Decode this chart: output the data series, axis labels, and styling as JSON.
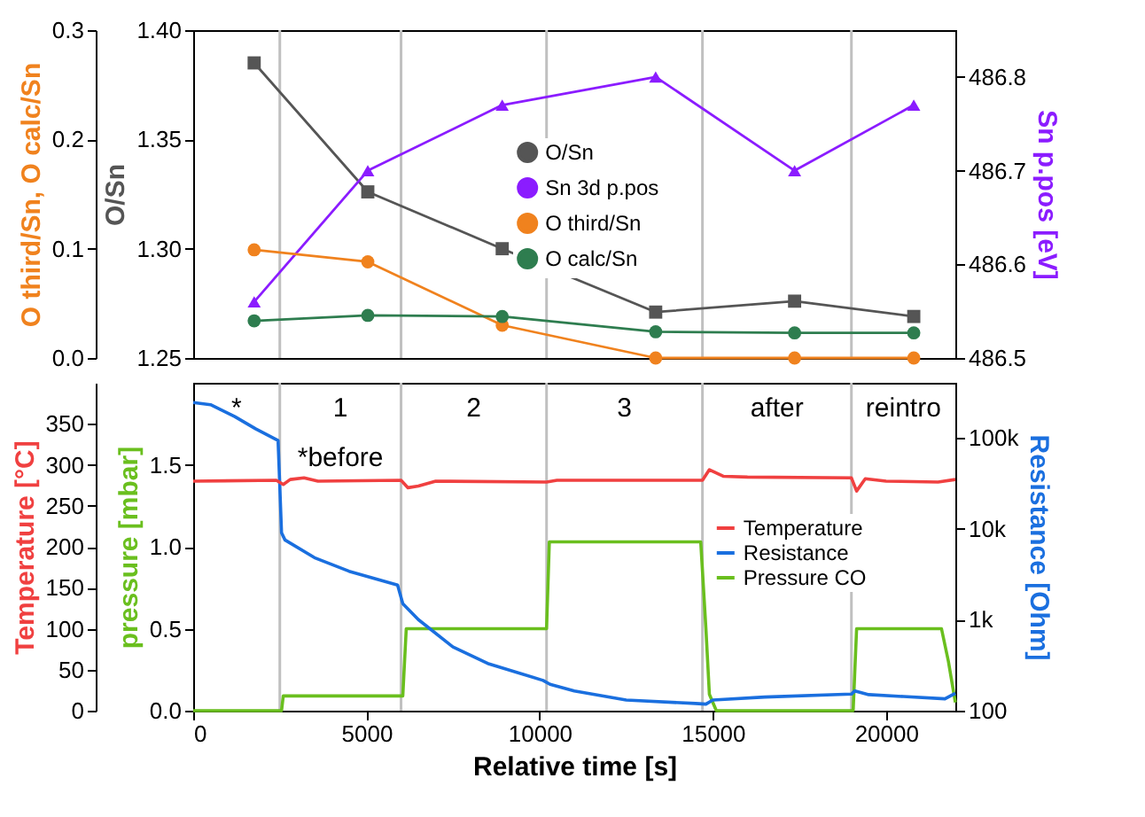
{
  "chart_data": [
    {
      "type": "line",
      "x": [
        1760,
        5040,
        8920,
        13350,
        17360,
        20800
      ],
      "xlim": [
        0,
        22000
      ],
      "tick_labels": "y",
      "legend": "center",
      "line_style": "solid",
      "ylabel": "O/Sn",
      "ylim": [
        1.25,
        1.4
      ],
      "yticks": [
        1.25,
        {
          "value": 1.3,
          "label": "1.30"
        },
        1.35,
        {
          "value": 1.4,
          "label": "1.40"
        }
      ],
      "y2label": "Sn p.pos [eV]",
      "y2lim": [
        486.5,
        486.85
      ],
      "y2ticks": [
        486.5,
        486.6,
        486.7,
        486.8
      ],
      "y3label": "O third/Sn, O calc/Sn",
      "y3lim": [
        0,
        0.3
      ],
      "y3ticks": [
        {
          "value": 0,
          "label": "0.0"
        },
        0.1,
        0.2,
        0.3
      ],
      "ref_lines": [
        {
          "axis": "x",
          "value": 2500,
          "color": "#c0c0c0"
        },
        {
          "axis": "x",
          "value": 6000,
          "color": "#c0c0c0"
        },
        {
          "axis": "x",
          "value": 10200,
          "color": "#c0c0c0"
        },
        {
          "axis": "x",
          "value": 14700,
          "color": "#c0c0c0"
        },
        {
          "axis": "x",
          "value": 19000,
          "color": "#c0c0c0"
        }
      ],
      "series": [
        {
          "name": "O/Sn",
          "color": "#555555",
          "marker": "square",
          "axis": "y",
          "values": [
            1.385,
            1.326,
            1.3,
            1.271,
            1.276,
            1.269
          ]
        },
        {
          "name": "Sn 3d p.pos",
          "color": "#8b1cff",
          "marker": "triangle",
          "axis": "y2",
          "values": [
            486.56,
            486.7,
            486.77,
            486.8,
            486.7,
            486.77
          ]
        },
        {
          "name": "O third/Sn",
          "color": "#f0821e",
          "marker": "circle",
          "axis": "y3",
          "values": [
            0.099,
            0.088,
            0.03,
            0,
            0,
            0
          ]
        },
        {
          "name": "O calc/Sn",
          "color": "#2e7d4f",
          "marker": "circle",
          "axis": "y3",
          "values": [
            0.034,
            0.039,
            0.038,
            0.024,
            0.023,
            0.023
          ]
        }
      ]
    },
    {
      "type": "line",
      "xlim": [
        0,
        22000
      ],
      "xticks": [
        0,
        5000,
        10000,
        15000,
        20000
      ],
      "xlabel": "Relative time [s]",
      "legend": "right",
      "line_style": "solid",
      "log": "y2",
      "ylabel": "pressure [mbar]",
      "ylim": [
        0,
        2.0
      ],
      "yticks": [
        {
          "value": 0,
          "label": "0.0"
        },
        0.5,
        {
          "value": 1,
          "label": "1.0"
        },
        1.5
      ],
      "y2label": "Resistance [Ohm]",
      "y2lim": [
        100,
        400000
      ],
      "y2ticks": [
        100,
        {
          "value": 1000,
          "label": "1k"
        },
        {
          "value": 10000,
          "label": "10k"
        },
        {
          "value": 100000,
          "label": "100k"
        }
      ],
      "y3label": "Temperature [°C]",
      "y3lim": [
        0,
        400
      ],
      "y3ticks": [
        0,
        50,
        100,
        150,
        200,
        250,
        300,
        350
      ],
      "ref_lines": [
        {
          "axis": "x",
          "value": 2500,
          "color": "#c0c0c0"
        },
        {
          "axis": "x",
          "value": 6000,
          "color": "#c0c0c0"
        },
        {
          "axis": "x",
          "value": 10200,
          "color": "#c0c0c0"
        },
        {
          "axis": "x",
          "value": 14700,
          "color": "#c0c0c0"
        },
        {
          "axis": "x",
          "value": 19000,
          "color": "#c0c0c0"
        }
      ],
      "annotations": [
        "*",
        "1",
        "2",
        "3",
        "after",
        "reintro",
        "*before"
      ],
      "series": [
        {
          "name": "Temperature",
          "color": "#f04040",
          "axis": "y3",
          "x": [
            0,
            2400,
            2600,
            2800,
            3200,
            3600,
            6000,
            6200,
            6500,
            7000,
            10200,
            10500,
            14700,
            14900,
            15300,
            16000,
            19000,
            19150,
            19400,
            20000,
            21500,
            22000
          ],
          "values": [
            280,
            281,
            276,
            282,
            284,
            280,
            281,
            272,
            274,
            280,
            279,
            281,
            281,
            294,
            286,
            285,
            284,
            268,
            283,
            280,
            279,
            282
          ]
        },
        {
          "name": "Resistance",
          "color": "#1a6fdf",
          "axis": "y2",
          "x": [
            0,
            500,
            1200,
            1800,
            2450,
            2550,
            2650,
            3500,
            4500,
            5900,
            6050,
            6500,
            7500,
            8500,
            10100,
            10300,
            11000,
            12500,
            14500,
            14800,
            15000,
            16500,
            19000,
            19100,
            19500,
            20500,
            21700,
            22000
          ],
          "values": [
            243000,
            230000,
            170000,
            125000,
            93000,
            9000,
            7500,
            4800,
            3400,
            2400,
            1500,
            1000,
            500,
            330,
            215,
            195,
            165,
            131,
            120,
            118,
            131,
            141,
            152,
            165,
            150,
            143,
            135,
            155
          ]
        },
        {
          "name": "Pressure CO",
          "color": "#6abf1e",
          "axis": "y",
          "x": [
            0,
            2550,
            2600,
            6050,
            6150,
            10200,
            10280,
            14650,
            14800,
            14900,
            15100,
            19050,
            19150,
            21600,
            21800,
            22000
          ],
          "values": [
            0,
            0,
            0.09,
            0.09,
            0.5,
            0.5,
            1.03,
            1.03,
            0.5,
            0.1,
            0,
            0,
            0.5,
            0.5,
            0.3,
            0.05
          ]
        }
      ]
    }
  ]
}
